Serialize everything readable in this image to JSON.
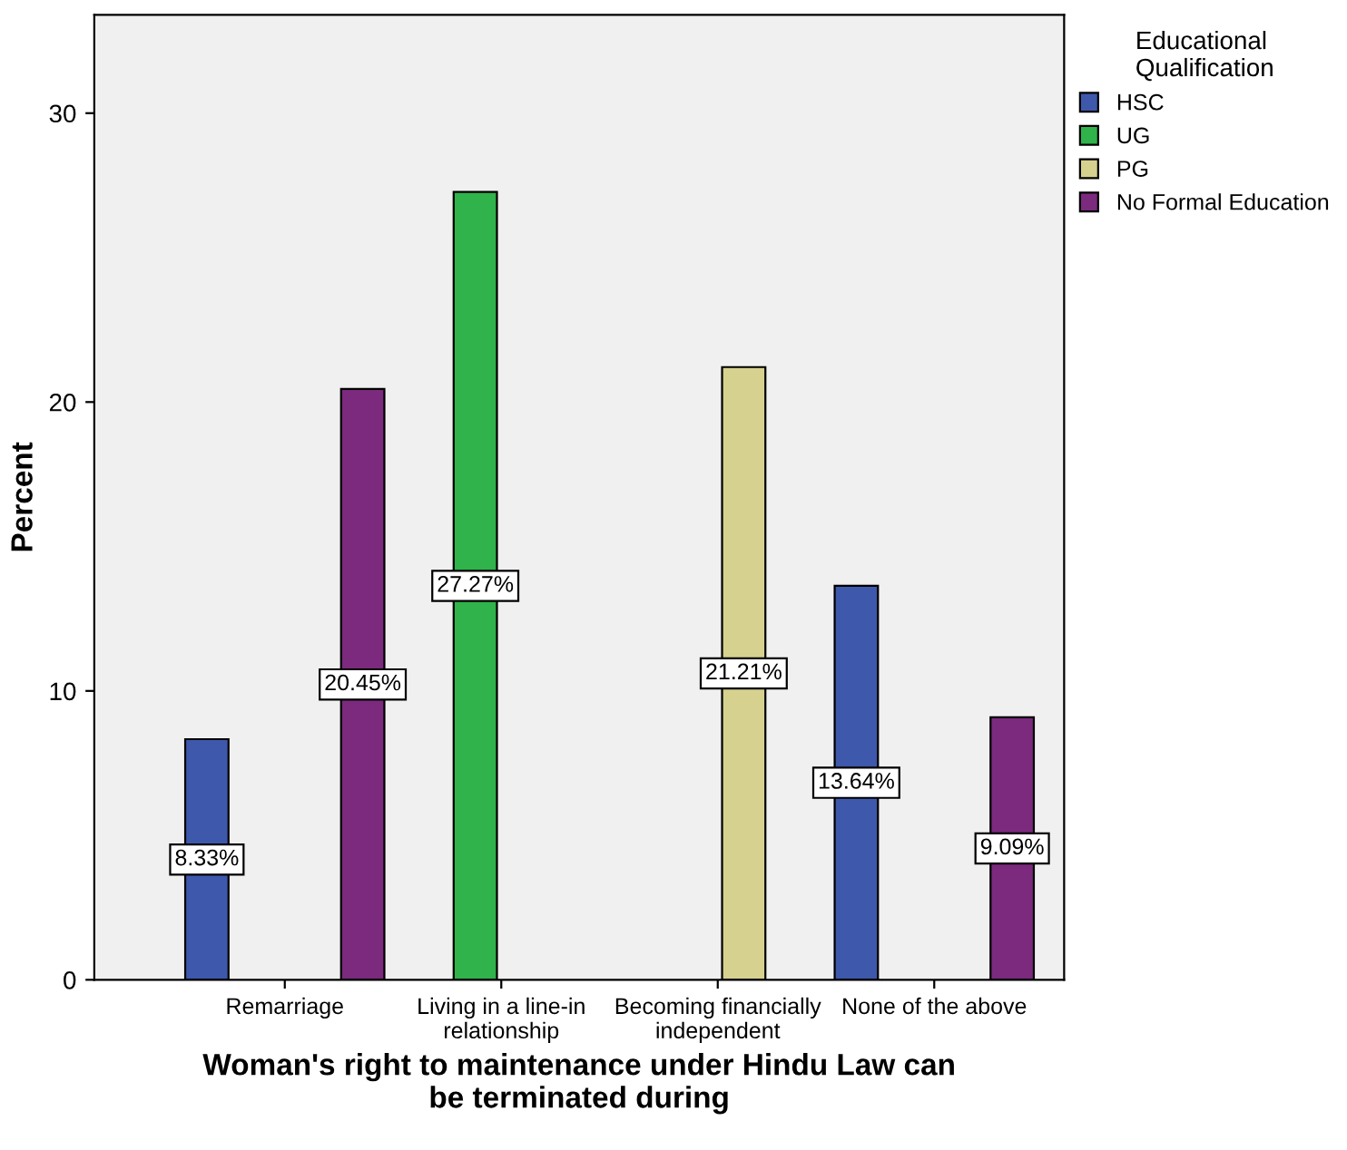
{
  "chart_data": {
    "type": "bar",
    "xlabel": "Woman's right to maintenance under Hindu Law can\nbe terminated during",
    "ylabel": "Percent",
    "legend_title": "Educational\nQualification",
    "categories": [
      "Remarriage",
      "Living in a line-in\nrelationship",
      "Becoming financially\nindependent",
      "None of the above"
    ],
    "series": [
      {
        "name": "HSC",
        "color": "#3e58ac",
        "values": [
          8.33,
          null,
          null,
          13.64
        ],
        "value_labels": [
          "8.33%",
          null,
          null,
          "13.64%"
        ]
      },
      {
        "name": "UG",
        "color": "#2fb34a",
        "values": [
          null,
          27.27,
          null,
          null
        ],
        "value_labels": [
          null,
          "27.27%",
          null,
          null
        ]
      },
      {
        "name": "PG",
        "color": "#d6d18f",
        "values": [
          null,
          null,
          21.21,
          null
        ],
        "value_labels": [
          null,
          null,
          "21.21%",
          null
        ]
      },
      {
        "name": "No Formal Education",
        "color": "#7b2a7d",
        "values": [
          20.45,
          null,
          null,
          9.09
        ],
        "value_labels": [
          "20.45%",
          null,
          null,
          "9.09%"
        ]
      }
    ],
    "ylim": [
      0,
      33.4
    ],
    "yticks": [
      0,
      10,
      20,
      30
    ],
    "grid": false,
    "legend": "top right"
  }
}
